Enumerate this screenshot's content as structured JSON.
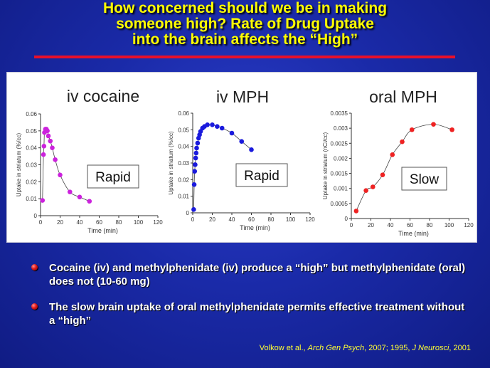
{
  "slide": {
    "title_lines": [
      "How concerned should we be in making",
      "someone high? Rate of Drug Uptake",
      "into the brain affects  the “High”"
    ],
    "bullets": [
      "Cocaine (iv) and methylphenidate (iv) produce a “high” but methylphenidate (oral) does not (10-60 mg)",
      "The slow brain uptake of oral methylphenidate permits effective treatment without a “high”"
    ],
    "citation": {
      "author": "Volkow et al., ",
      "journal1": "Arch Gen Psych",
      "mid": ", 2007; 1995, ",
      "journal2": "J Neurosci",
      "end": ", 2001"
    },
    "colors": {
      "title": "#ffff00",
      "rule": "#e8102a",
      "bullet_dot": "#e01818",
      "citation": "#ffff33",
      "cocaine": "#cc22dd",
      "iv_mph": "#1a1add",
      "oral_mph": "#ee2222"
    }
  },
  "chart_data": [
    {
      "type": "scatter",
      "title": "iv cocaine",
      "xlabel": "Time (min)",
      "ylabel": "Uptake in striatum (%/cc)",
      "xlim": [
        0,
        120
      ],
      "ylim": [
        0,
        0.06
      ],
      "xticks": [
        "0",
        "20",
        "40",
        "60",
        "80",
        "100",
        "120"
      ],
      "yticks": [
        "0",
        "0.01",
        "0.02",
        "0.03",
        "0.04",
        "0.05",
        "0.06"
      ],
      "annotation": "Rapid",
      "color": "#cc22dd",
      "x": [
        2,
        3,
        3.5,
        4,
        5,
        6,
        7,
        8,
        10,
        12,
        15,
        20,
        30,
        40,
        50
      ],
      "y": [
        0.009,
        0.036,
        0.041,
        0.049,
        0.051,
        0.051,
        0.05,
        0.047,
        0.044,
        0.04,
        0.033,
        0.024,
        0.014,
        0.011,
        0.0085
      ]
    },
    {
      "type": "scatter",
      "title": "iv MPH",
      "xlabel": "Time (min)",
      "ylabel": "Uptake in striatum  (%/cc)",
      "xlim": [
        0,
        120
      ],
      "ylim": [
        0,
        0.06
      ],
      "xticks": [
        "0",
        "20",
        "40",
        "60",
        "80",
        "100",
        "120"
      ],
      "yticks": [
        "0",
        "0.01",
        "0.02",
        "0.03",
        "0.04",
        "0.05",
        "0.06"
      ],
      "annotation": "Rapid",
      "color": "#1a1add",
      "x": [
        1,
        1.5,
        2,
        2.5,
        3,
        3.5,
        4,
        5,
        6,
        7,
        8,
        10,
        12,
        15,
        20,
        25,
        30,
        40,
        50,
        60
      ],
      "y": [
        0.002,
        0.017,
        0.025,
        0.029,
        0.033,
        0.036,
        0.039,
        0.042,
        0.045,
        0.047,
        0.049,
        0.051,
        0.052,
        0.053,
        0.053,
        0.052,
        0.051,
        0.048,
        0.043,
        0.038
      ]
    },
    {
      "type": "scatter",
      "title": "oral MPH",
      "xlabel": "Time (min)",
      "ylabel": "Uptake in striatum (nCi/cc)",
      "xlim": [
        0,
        120
      ],
      "ylim": [
        0,
        0.0035
      ],
      "xticks": [
        "0",
        "20",
        "40",
        "60",
        "80",
        "100",
        "120"
      ],
      "yticks": [
        "0",
        "0.0005",
        "0.001",
        "0.0015",
        "0.002",
        "0.0025",
        "0.003",
        "0.0035"
      ],
      "annotation": "Slow",
      "color": "#ee2222",
      "x": [
        5,
        15,
        22,
        32,
        42,
        52,
        62,
        84,
        103
      ],
      "y": [
        0.00025,
        0.00093,
        0.00105,
        0.00145,
        0.00212,
        0.00255,
        0.00295,
        0.00313,
        0.00295
      ]
    }
  ]
}
